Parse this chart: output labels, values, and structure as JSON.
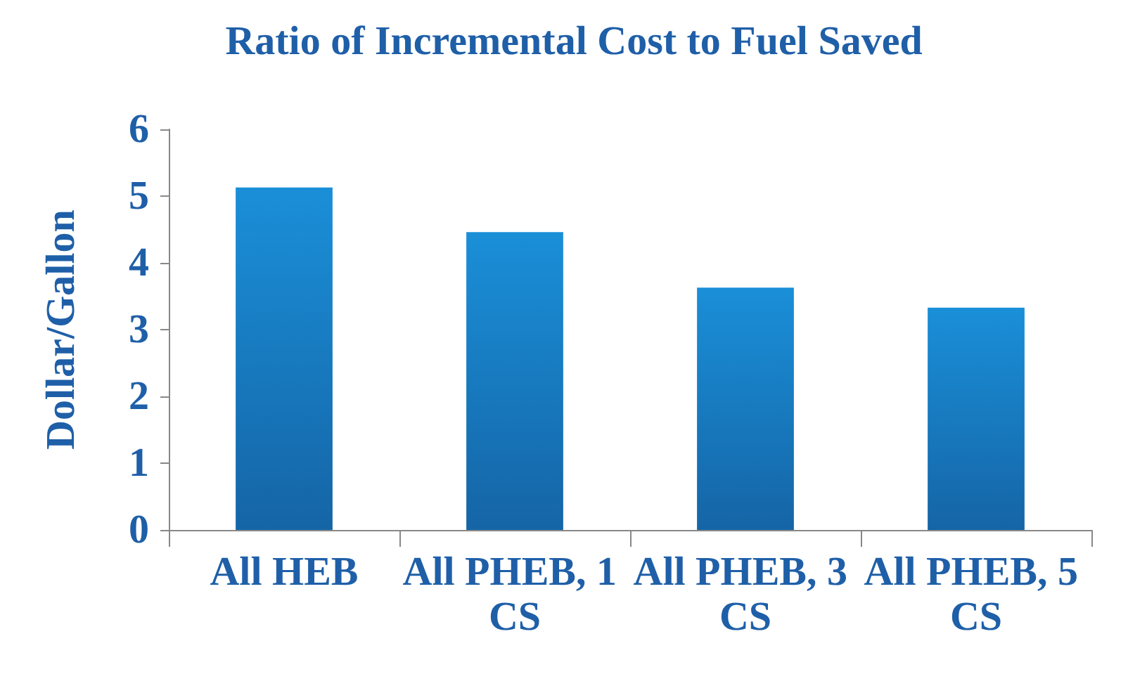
{
  "chart_data": {
    "type": "bar",
    "title": "Ratio of Incremental Cost to Fuel Saved",
    "ylabel": "Dollar/Gallon",
    "categories": [
      "All HEB",
      "All PHEB, 1 CS",
      "All PHEB, 3 CS",
      "All PHEB, 5 CS"
    ],
    "values": [
      5.13,
      4.46,
      3.63,
      3.33
    ],
    "color": "#1a8fd8",
    "ylim": [
      0,
      6
    ],
    "yticks": [
      0,
      1,
      2,
      3,
      4,
      5,
      6
    ],
    "grid": false
  }
}
